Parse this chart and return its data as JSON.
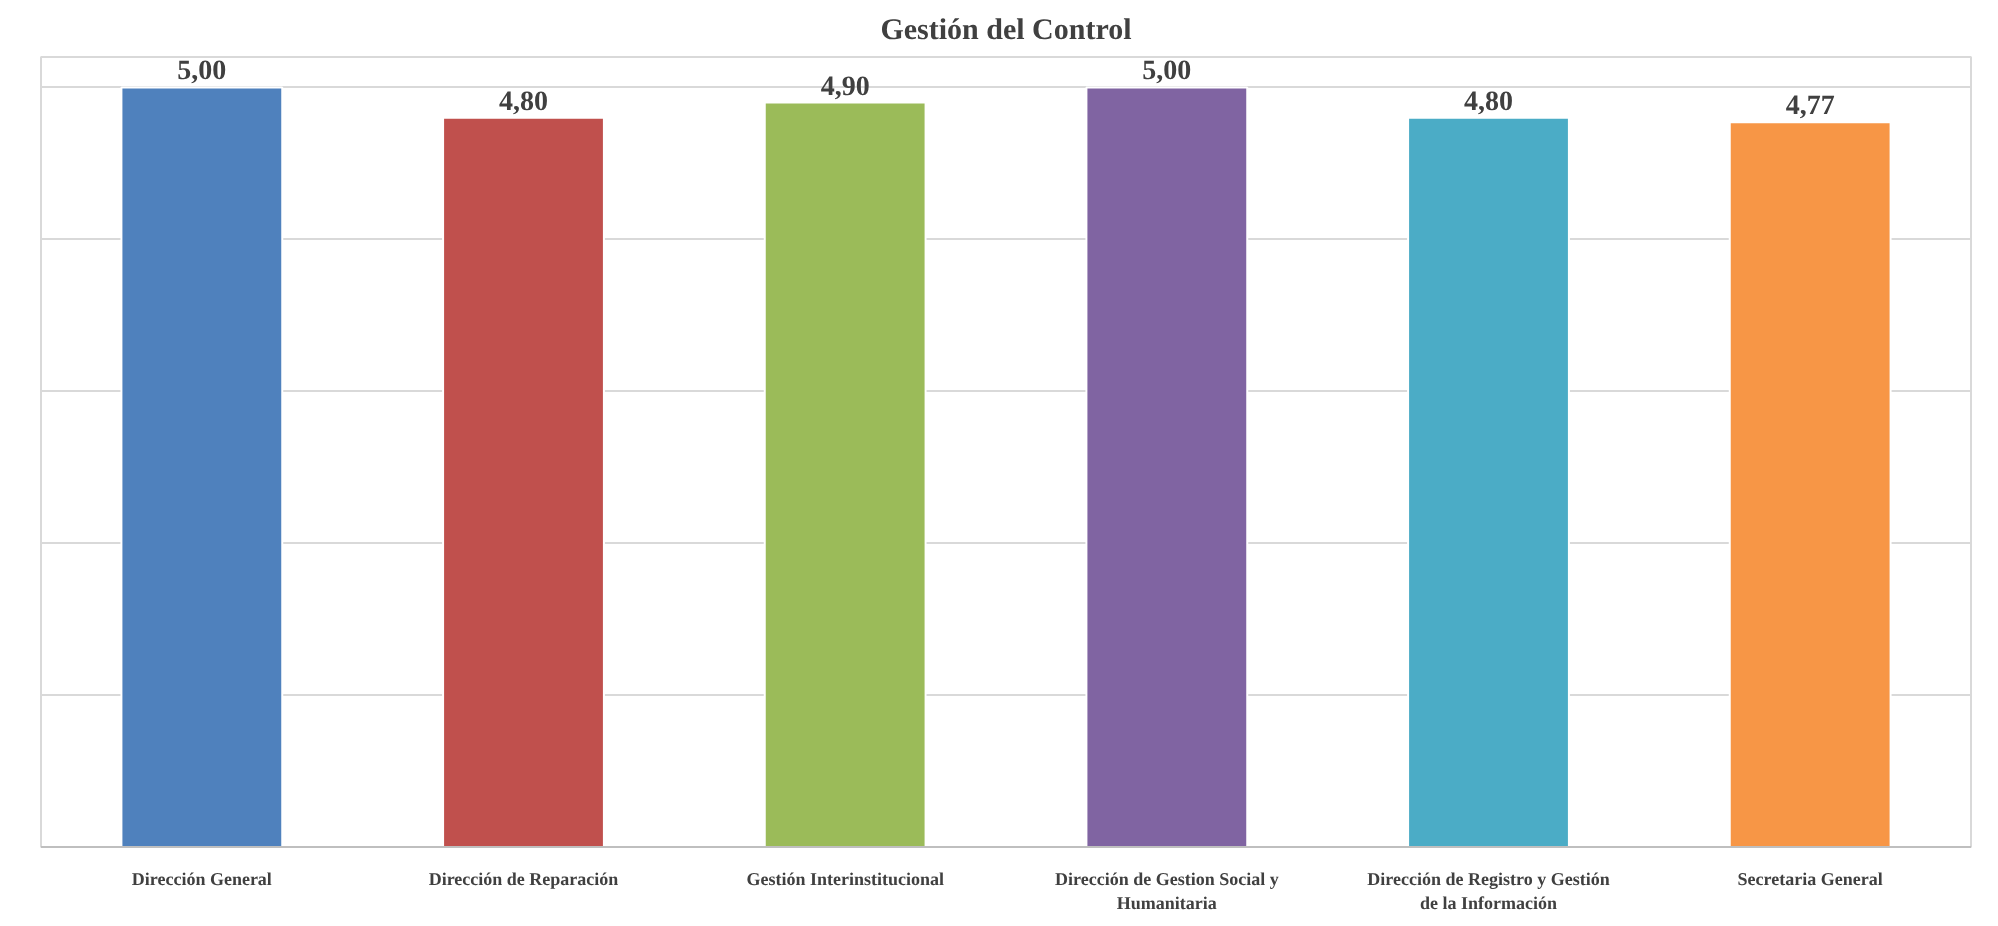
{
  "chart_data": {
    "type": "bar",
    "title": "Gestión del Control",
    "categories": [
      "Dirección General",
      "Dirección de Reparación",
      "Gestión Interinstitucional",
      "Dirección de Gestion Social y Humanitaria",
      "Dirección de Registro y Gestión de la Información",
      "Secretaria General"
    ],
    "values": [
      5.0,
      4.8,
      4.9,
      5.0,
      4.8,
      4.77
    ],
    "colors": [
      "#4f81bd",
      "#c0504d",
      "#9bbb59",
      "#8064a2",
      "#4bacc6",
      "#f79646"
    ],
    "value_labels": [
      "5,00",
      "4,80",
      "4,90",
      "5,00",
      "4,80",
      "4,77"
    ],
    "ylim": [
      0,
      5.2
    ],
    "yticks": [
      {
        "value": 0,
        "label": null
      },
      {
        "value": 1,
        "label": null
      },
      {
        "value": 2,
        "label": null
      },
      {
        "value": 3,
        "label": null
      },
      {
        "value": 4,
        "label": null
      },
      {
        "value": 5,
        "label": null
      }
    ],
    "grid": "y",
    "tick_labels": "x"
  }
}
